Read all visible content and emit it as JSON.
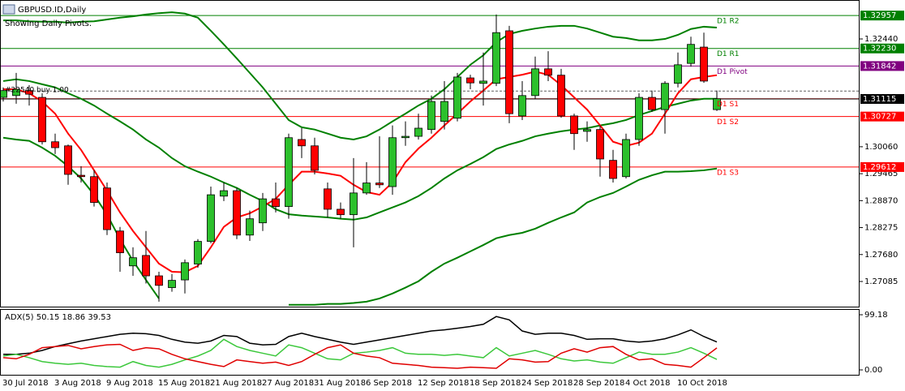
{
  "chart_data": [
    {
      "type": "candlestick",
      "title": "GBPUSD.ID,Daily",
      "subtitle": "Showing Daily Pivots.",
      "categories": [
        null,
        "30 Jul 2018",
        null,
        null,
        null,
        "3 Aug 2018",
        null,
        null,
        null,
        "9 Aug 2018",
        null,
        null,
        null,
        "15 Aug 2018",
        null,
        null,
        null,
        "21 Aug 2018",
        null,
        null,
        null,
        "27 Aug 2018",
        null,
        null,
        null,
        "31 Aug 2018",
        null,
        null,
        null,
        "6 Sep 2018",
        null,
        null,
        null,
        "12 Sep 2018",
        null,
        null,
        null,
        "18 Sep 2018",
        null,
        null,
        null,
        "24 Sep 2018",
        null,
        null,
        null,
        "28 Sep 2018",
        null,
        null,
        null,
        "4 Oct 2018",
        null,
        null,
        null,
        "10 Oct 2018",
        null,
        null
      ],
      "open": [
        1.3115,
        1.3119,
        1.313,
        1.3115,
        1.3017,
        1.3008,
        1.2943,
        1.294,
        1.2915,
        1.282,
        1.2743,
        1.2766,
        1.2721,
        1.2695,
        1.2712,
        1.2747,
        1.2797,
        1.2897,
        1.2909,
        1.2811,
        1.2838,
        1.2891,
        1.2874,
        1.3022,
        1.3008,
        1.2913,
        1.2868,
        1.2856,
        1.2904,
        1.2926,
        1.2918,
        1.3026,
        1.3029,
        1.3044,
        1.3062,
        1.3069,
        1.3158,
        1.3146,
        1.3146,
        1.3262,
        1.3074,
        1.3119,
        1.3178,
        1.3164,
        1.3074,
        1.304,
        1.3044,
        1.2976,
        1.294,
        1.3022,
        1.3115,
        1.3088,
        1.3146,
        1.319,
        1.3226,
        1.3088
      ],
      "high": [
        1.3137,
        1.3169,
        1.3142,
        1.3124,
        1.3035,
        1.3011,
        1.2963,
        1.2954,
        1.2927,
        1.2829,
        1.2784,
        1.282,
        1.273,
        1.2725,
        1.2757,
        1.2802,
        1.2918,
        1.2927,
        1.2915,
        1.2865,
        1.2904,
        1.2927,
        1.3035,
        1.3047,
        1.3026,
        1.2927,
        1.2883,
        1.2981,
        1.2972,
        1.3029,
        1.3053,
        1.3062,
        1.3079,
        1.3119,
        1.3151,
        1.3169,
        1.3165,
        1.3214,
        1.3298,
        1.3273,
        1.3151,
        1.3205,
        1.3217,
        1.3178,
        1.3079,
        1.3062,
        1.3053,
        1.2999,
        1.3035,
        1.3124,
        1.313,
        1.3151,
        1.3214,
        1.3249,
        1.3258,
        1.313
      ],
      "low": [
        1.3106,
        1.3101,
        1.3097,
        1.3011,
        1.299,
        1.2922,
        1.2927,
        1.2874,
        1.2811,
        1.273,
        1.2721,
        1.2704,
        1.2664,
        1.2686,
        1.2682,
        1.2739,
        1.2793,
        1.2886,
        1.2802,
        1.2798,
        1.282,
        1.2861,
        1.2847,
        1.2981,
        1.2945,
        1.285,
        1.2847,
        1.2784,
        1.29,
        1.2915,
        1.29,
        1.3008,
        1.3022,
        1.3035,
        1.3044,
        1.3062,
        1.3133,
        1.3097,
        1.314,
        1.3058,
        1.3065,
        1.3112,
        1.3151,
        1.307,
        1.2999,
        1.3017,
        1.294,
        1.2927,
        1.2936,
        1.3008,
        1.3083,
        1.3035,
        1.3137,
        1.3183,
        1.3147,
        1.3085
      ],
      "close": [
        1.313,
        1.3133,
        1.3122,
        1.3017,
        1.3004,
        1.2945,
        1.294,
        1.2883,
        1.2823,
        1.2772,
        1.2761,
        1.2721,
        1.27,
        1.2711,
        1.275,
        1.2797,
        1.29,
        1.2909,
        1.2811,
        1.2847,
        1.2891,
        1.2874,
        1.3026,
        1.3008,
        1.2954,
        1.2868,
        1.2856,
        1.2904,
        1.2926,
        1.2922,
        1.3026,
        1.3029,
        1.3047,
        1.3106,
        1.3106,
        1.316,
        1.3147,
        1.3151,
        1.3258,
        1.3079,
        1.3119,
        1.3178,
        1.3164,
        1.3074,
        1.3035,
        1.3044,
        1.2979,
        1.2936,
        1.3022,
        1.3115,
        1.3088,
        1.3146,
        1.3187,
        1.3232,
        1.3151,
        1.3112
      ],
      "up_color": "#2cc02c",
      "down_color": "#ff0000",
      "series": [
        {
          "color": "#008000",
          "values": [
            1.3285,
            1.3285,
            1.3283,
            1.3282,
            1.3282,
            1.328,
            1.3282,
            1.3283,
            1.3287,
            1.3291,
            1.3294,
            1.3298,
            1.3301,
            1.3303,
            1.33,
            1.3291,
            1.3262,
            1.3232,
            1.3201,
            1.3169,
            1.3137,
            1.3101,
            1.3065,
            1.3049,
            1.3044,
            1.3035,
            1.3026,
            1.3022,
            1.3029,
            1.3044,
            1.3062,
            1.3079,
            1.3097,
            1.3112,
            1.3133,
            1.316,
            1.3187,
            1.3208,
            1.3237,
            1.3255,
            1.3262,
            1.3267,
            1.3271,
            1.3273,
            1.3273,
            1.3267,
            1.3258,
            1.3249,
            1.3246,
            1.3241,
            1.3241,
            1.3244,
            1.3253,
            1.3266,
            1.3271,
            1.3269
          ]
        },
        {
          "color": "#008000",
          "values": [
            1.3151,
            1.3155,
            1.3151,
            1.3144,
            1.3137,
            1.3124,
            1.3112,
            1.3097,
            1.3079,
            1.3062,
            1.3044,
            1.3022,
            1.3004,
            1.2981,
            1.2963,
            1.2951,
            1.294,
            1.2927,
            1.2915,
            1.29,
            1.2886,
            1.2868,
            1.2857,
            1.2854,
            1.2852,
            1.285,
            1.2847,
            1.2845,
            1.285,
            1.2861,
            1.2872,
            1.2883,
            1.2897,
            1.2915,
            1.2936,
            1.2954,
            1.2968,
            1.2983,
            1.3001,
            1.3011,
            1.3019,
            1.3029,
            1.3035,
            1.304,
            1.3044,
            1.3047,
            1.3053,
            1.3058,
            1.3065,
            1.3076,
            1.3085,
            1.3094,
            1.3101,
            1.3108,
            1.3112,
            1.3112
          ]
        },
        {
          "color": "#008000",
          "values": [
            1.3026,
            1.3022,
            1.3019,
            1.3004,
            1.2986,
            1.2963,
            1.2936,
            1.29,
            1.2856,
            1.2802,
            1.2754,
            1.2712,
            1.2671,
            null,
            null,
            null,
            null,
            null,
            null,
            null,
            null,
            null,
            1.2657,
            1.2657,
            1.2657,
            1.2659,
            1.2659,
            1.2661,
            1.2664,
            1.2671,
            1.2682,
            1.2695,
            1.2709,
            1.273,
            1.2748,
            1.2761,
            1.2775,
            1.2789,
            1.2804,
            1.2811,
            1.2816,
            1.2825,
            1.2838,
            1.285,
            1.2861,
            1.2883,
            1.2895,
            1.2904,
            1.2918,
            1.2933,
            1.2943,
            1.2951,
            1.2951,
            1.2952,
            1.2954,
            1.2958
          ]
        },
        {
          "color": "#ff0000",
          "values": [
            1.3133,
            1.3133,
            1.3124,
            1.3106,
            1.3079,
            1.3035,
            1.2999,
            1.2954,
            1.2909,
            1.2861,
            1.282,
            1.2784,
            1.2748,
            1.273,
            1.2729,
            1.2743,
            1.2784,
            1.2829,
            1.285,
            1.2859,
            1.2874,
            1.2891,
            1.2922,
            1.2951,
            1.2951,
            1.2947,
            1.2942,
            1.2922,
            1.2906,
            1.29,
            1.2927,
            1.2972,
            1.3002,
            1.3026,
            1.3053,
            1.3079,
            1.3106,
            1.313,
            1.3155,
            1.316,
            1.3165,
            1.3172,
            1.3165,
            1.3142,
            1.3115,
            1.3088,
            1.3053,
            1.3017,
            1.3008,
            1.3015,
            1.3035,
            1.3079,
            1.3124,
            1.3155,
            1.316,
            1.3164
          ]
        }
      ],
      "levels": {
        "names": [
          "D1 R2",
          "D1 R1",
          "D1 Pivot",
          "D1 S1",
          "D1 S2",
          "D1 S3"
        ],
        "values": [
          1.32957,
          1.3223,
          1.31842,
          1.3112,
          1.30727,
          1.29612
        ],
        "value_labels": [
          "1.32957",
          "1.32230",
          "1.31842",
          null,
          "1.30727",
          "1.29612"
        ],
        "colors": [
          "#008000",
          "#008000",
          "#800080",
          "#ff0000",
          "#ff0000",
          "#ff0000"
        ]
      },
      "current_price": {
        "value": 1.31115,
        "label": "1.31115",
        "color": "#000000"
      },
      "order": {
        "label": "#22540 buy 1.00",
        "value": 1.3129
      },
      "ylim": [
        1.2653,
        1.333
      ],
      "yticks": [
        {
          "value": 1.3244,
          "label": "1.32440"
        },
        {
          "value": 1.3006,
          "label": "1.30060"
        },
        1.29465,
        {
          "value": 1.2887,
          "label": "1.28870"
        },
        1.28275,
        {
          "value": 1.2768,
          "label": "1.27680"
        },
        1.27085
      ]
    },
    {
      "type": "line",
      "title": "ADX(5) 50.15 18.86 39.53",
      "series": [
        {
          "color": "#000000",
          "values": [
            28,
            28,
            30,
            35,
            42,
            47,
            52,
            56,
            60,
            64,
            66,
            65,
            62,
            55,
            50,
            48,
            52,
            62,
            60,
            48,
            45,
            46,
            60,
            66,
            60,
            55,
            50,
            46,
            50,
            54,
            58,
            62,
            66,
            70,
            72,
            75,
            78,
            82,
            96,
            90,
            70,
            64,
            66,
            66,
            62,
            55,
            56,
            56,
            52,
            50,
            52,
            56,
            63,
            72,
            60,
            50.15
          ]
        },
        {
          "color": "#3cc83c",
          "values": [
            25,
            28,
            22,
            15,
            12,
            10,
            12,
            8,
            6,
            5,
            15,
            8,
            5,
            10,
            18,
            25,
            35,
            55,
            42,
            35,
            30,
            25,
            45,
            40,
            30,
            20,
            18,
            30,
            32,
            35,
            40,
            30,
            28,
            28,
            26,
            28,
            25,
            22,
            40,
            25,
            30,
            35,
            28,
            20,
            16,
            18,
            14,
            12,
            22,
            32,
            28,
            28,
            32,
            40,
            30,
            18.86
          ]
        },
        {
          "color": "#e00000",
          "values": [
            22,
            20,
            28,
            40,
            42,
            44,
            38,
            42,
            45,
            46,
            35,
            40,
            38,
            28,
            20,
            15,
            10,
            6,
            18,
            15,
            12,
            14,
            8,
            15,
            28,
            40,
            45,
            30,
            25,
            22,
            12,
            10,
            8,
            5,
            4,
            3,
            5,
            4,
            3,
            20,
            18,
            14,
            15,
            30,
            38,
            32,
            40,
            42,
            28,
            18,
            20,
            10,
            8,
            5,
            22,
            39.53
          ]
        }
      ],
      "ylim": [
        0,
        99.18
      ],
      "yticks": [
        {
          "value": 0,
          "label": "0.00"
        },
        99.18
      ]
    }
  ]
}
